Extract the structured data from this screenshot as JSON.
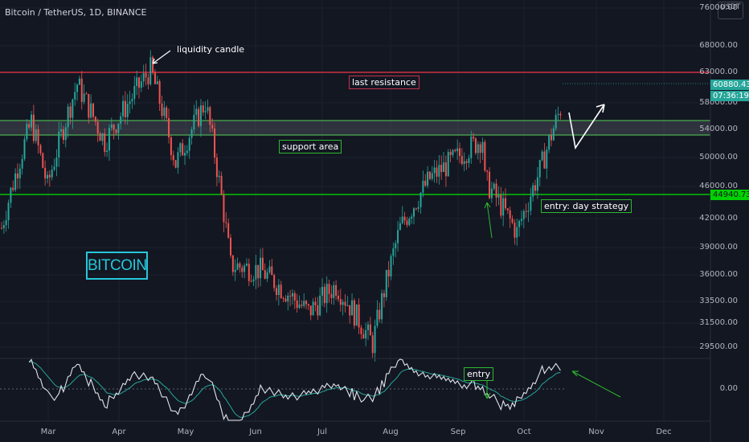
{
  "header": {
    "title": "Bitcoin / TetherUS, 1D, BINANCE"
  },
  "currency_button": {
    "label": "USDT"
  },
  "price_axis": {
    "labels": [
      "76000.00",
      "68000.00",
      "63000.00",
      "58000.00",
      "54000.00",
      "50000.00",
      "46000.00",
      "42000.00",
      "39000.00",
      "36000.00",
      "33500.00",
      "31500.00",
      "29500.00"
    ]
  },
  "indicator_axis": {
    "labels": [
      "0.00"
    ]
  },
  "time_axis": {
    "labels": [
      "Mar",
      "Apr",
      "May",
      "Jun",
      "Jul",
      "Aug",
      "Sep",
      "Oct",
      "Nov",
      "Dec"
    ]
  },
  "price_tags": {
    "last_price": "60880.43",
    "countdown": "07:36:19",
    "entry_price": "44940.73"
  },
  "annotations": {
    "liquidity": "liquidity candle",
    "resistance": "last resistance",
    "support": "support area",
    "entry_day": "entry: day strategy",
    "entry": "entry",
    "bitcoin": "BITCOIN"
  },
  "colors": {
    "background": "#131722",
    "up_candle": "#26a69a",
    "down_candle": "#ef5350",
    "resistance_line": "#f23645",
    "support_line": "#4caf50",
    "entry_line": "#00e600",
    "bitcoin_box": "#26c6da"
  },
  "chart_data": {
    "type": "candlestick",
    "title": "Bitcoin / TetherUS, 1D, BINANCE",
    "x_range": [
      "2021-02-08",
      "2021-12-15"
    ],
    "y_range": [
      28000,
      76000
    ],
    "y_scale": "log",
    "last_price": 60880.43,
    "levels": {
      "last_resistance": 63500,
      "support_area_top": 55300,
      "support_area_bottom": 52900,
      "entry_day_strategy": 44940.73
    },
    "approx_price_path": [
      {
        "date": "2021-02-08",
        "close": 41000
      },
      {
        "date": "2021-02-21",
        "close": 55000
      },
      {
        "date": "2021-02-28",
        "close": 46000
      },
      {
        "date": "2021-03-13",
        "close": 61000
      },
      {
        "date": "2021-03-25",
        "close": 52000
      },
      {
        "date": "2021-04-14",
        "close": 63500
      },
      {
        "date": "2021-04-25",
        "close": 49000
      },
      {
        "date": "2021-05-08",
        "close": 58000
      },
      {
        "date": "2021-05-19",
        "close": 37000
      },
      {
        "date": "2021-06-01",
        "close": 36500
      },
      {
        "date": "2021-06-22",
        "close": 32500
      },
      {
        "date": "2021-07-04",
        "close": 35000
      },
      {
        "date": "2021-07-20",
        "close": 29800
      },
      {
        "date": "2021-08-01",
        "close": 41000
      },
      {
        "date": "2021-08-14",
        "close": 47000
      },
      {
        "date": "2021-09-06",
        "close": 52500
      },
      {
        "date": "2021-09-07",
        "close": 46800
      },
      {
        "date": "2021-09-21",
        "close": 40500
      },
      {
        "date": "2021-10-01",
        "close": 48000
      },
      {
        "date": "2021-10-15",
        "close": 62000
      },
      {
        "date": "2021-10-17",
        "close": 60880
      }
    ],
    "indicator": {
      "zero_line": 0.0,
      "series": [
        "fast",
        "signal"
      ]
    }
  }
}
